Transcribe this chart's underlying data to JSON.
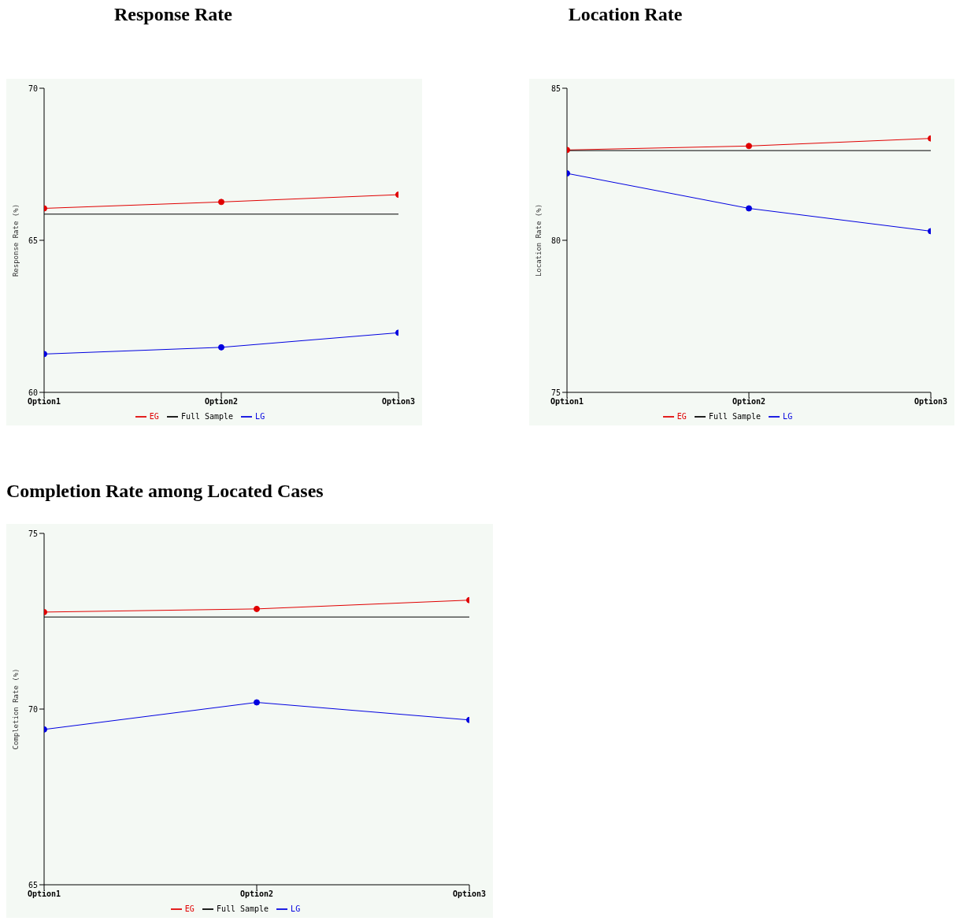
{
  "chart_data": [
    {
      "type": "line",
      "title": "Response Rate",
      "ylabel": "Response Rate (%)",
      "categories": [
        "Option1",
        "Option2",
        "Option3"
      ],
      "ylim": [
        60,
        70
      ],
      "yticks": [
        60,
        65,
        70
      ],
      "marker": "circle",
      "legend": "bottom",
      "grid": false,
      "series": [
        {
          "name": "EG",
          "color": "#e00000",
          "values": [
            66.05,
            66.26,
            66.5
          ]
        },
        {
          "name": "LG",
          "color": "#0000e0",
          "values": [
            61.26,
            61.48,
            61.96
          ]
        },
        {
          "name": "Full Sample",
          "color": "#000000",
          "marker": "none",
          "values": [
            65.86,
            65.86,
            65.86
          ]
        }
      ]
    },
    {
      "type": "line",
      "title": "Location Rate",
      "ylabel": "Location Rate (%)",
      "categories": [
        "Option1",
        "Option2",
        "Option3"
      ],
      "ylim": [
        75,
        85
      ],
      "yticks": [
        75,
        80,
        85
      ],
      "marker": "circle",
      "legend": "bottom",
      "grid": false,
      "series": [
        {
          "name": "EG",
          "color": "#e00000",
          "values": [
            82.97,
            83.1,
            83.35
          ]
        },
        {
          "name": "LG",
          "color": "#0000e0",
          "values": [
            82.2,
            81.05,
            80.3
          ]
        },
        {
          "name": "Full Sample",
          "color": "#000000",
          "marker": "none",
          "values": [
            82.95,
            82.95,
            82.95
          ]
        }
      ]
    },
    {
      "type": "line",
      "title": "Completion Rate among Located Cases",
      "ylabel": "Completion Rate (%)",
      "categories": [
        "Option1",
        "Option2",
        "Option3"
      ],
      "ylim": [
        65,
        75
      ],
      "yticks": [
        65,
        70,
        75
      ],
      "marker": "circle",
      "legend": "bottom",
      "grid": false,
      "series": [
        {
          "name": "EG",
          "color": "#e00000",
          "values": [
            72.76,
            72.85,
            73.1
          ]
        },
        {
          "name": "LG",
          "color": "#0000e0",
          "values": [
            69.42,
            70.19,
            69.69
          ]
        },
        {
          "name": "Full Sample",
          "color": "#000000",
          "marker": "none",
          "values": [
            72.62,
            72.62,
            72.62
          ]
        }
      ]
    }
  ]
}
